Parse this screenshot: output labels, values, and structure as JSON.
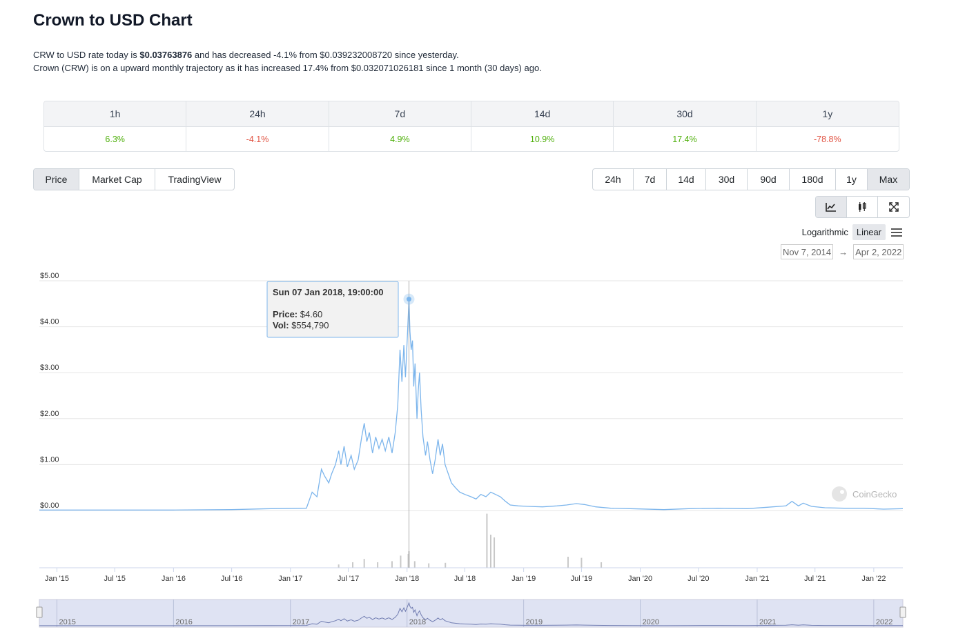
{
  "page": {
    "title": "Crown to USD Chart",
    "summary_line1": {
      "prefix": "CRW to USD rate today is ",
      "price": "$0.03763876",
      "suffix": " and has decreased -4.1% from $0.039232008720 since yesterday."
    },
    "summary_line2": "Crown (CRW) is on a upward monthly trajectory as it has increased 17.4% from $0.032071026181 since 1 month (30 days) ago."
  },
  "price_changes": [
    {
      "period": "1h",
      "value": "6.3%",
      "direction": "up"
    },
    {
      "period": "24h",
      "value": "-4.1%",
      "direction": "down"
    },
    {
      "period": "7d",
      "value": "4.9%",
      "direction": "up"
    },
    {
      "period": "14d",
      "value": "10.9%",
      "direction": "up"
    },
    {
      "period": "30d",
      "value": "17.4%",
      "direction": "up"
    },
    {
      "period": "1y",
      "value": "-78.8%",
      "direction": "down"
    }
  ],
  "chart_type_tabs": [
    {
      "label": "Price",
      "active": true
    },
    {
      "label": "Market Cap",
      "active": false
    },
    {
      "label": "TradingView",
      "active": false
    }
  ],
  "range_tabs": [
    {
      "label": "24h",
      "active": false
    },
    {
      "label": "7d",
      "active": false
    },
    {
      "label": "14d",
      "active": false
    },
    {
      "label": "30d",
      "active": false
    },
    {
      "label": "90d",
      "active": false
    },
    {
      "label": "180d",
      "active": false
    },
    {
      "label": "1y",
      "active": false
    },
    {
      "label": "Max",
      "active": true
    }
  ],
  "view_buttons": [
    {
      "icon": "line-chart-icon",
      "active": true
    },
    {
      "icon": "candlestick-icon",
      "active": false
    },
    {
      "icon": "fullscreen-icon",
      "active": false
    }
  ],
  "scale": {
    "logarithmic": "Logarithmic",
    "linear": "Linear",
    "active": "linear"
  },
  "date_range": {
    "from": "Nov 7, 2014",
    "arrow": "→",
    "to": "Apr 2, 2022"
  },
  "colors": {
    "line": "#7cb5ec",
    "positive": "#4eaf0a",
    "negative": "#e15241",
    "navigator_fill": "#dfe3f3"
  },
  "watermark": "CoinGecko",
  "chart_data": {
    "type": "line",
    "title": "",
    "xlabel": "",
    "ylabel": "",
    "y_ticks": [
      "$0.00",
      "$1.00",
      "$2.00",
      "$3.00",
      "$4.00",
      "$5.00"
    ],
    "ylim": [
      0,
      5
    ],
    "x_ticks": [
      "Jan '15",
      "Jul '15",
      "Jan '16",
      "Jul '16",
      "Jan '17",
      "Jul '17",
      "Jan '18",
      "Jul '18",
      "Jan '19",
      "Jul '19",
      "Jan '20",
      "Jul '20",
      "Jan '21",
      "Jul '21",
      "Jan '22"
    ],
    "x_tick_dates": [
      "2015-01-01",
      "2015-07-01",
      "2016-01-01",
      "2016-07-01",
      "2017-01-01",
      "2017-07-01",
      "2018-01-01",
      "2018-07-01",
      "2019-01-01",
      "2019-07-01",
      "2020-01-01",
      "2020-07-01",
      "2021-01-01",
      "2021-07-01",
      "2022-01-01"
    ],
    "grid": true,
    "series": [
      {
        "name": "Price",
        "points": [
          [
            "2014-11-07",
            0.01
          ],
          [
            "2015-03-01",
            0.01
          ],
          [
            "2015-07-01",
            0.01
          ],
          [
            "2016-01-01",
            0.01
          ],
          [
            "2016-07-01",
            0.02
          ],
          [
            "2016-11-01",
            0.04
          ],
          [
            "2017-02-20",
            0.05
          ],
          [
            "2017-03-10",
            0.4
          ],
          [
            "2017-03-25",
            0.3
          ],
          [
            "2017-04-08",
            0.9
          ],
          [
            "2017-04-18",
            0.75
          ],
          [
            "2017-05-01",
            0.6
          ],
          [
            "2017-05-10",
            0.8
          ],
          [
            "2017-05-22",
            1.0
          ],
          [
            "2017-06-01",
            1.3
          ],
          [
            "2017-06-08",
            1.0
          ],
          [
            "2017-06-18",
            1.4
          ],
          [
            "2017-06-28",
            0.95
          ],
          [
            "2017-07-10",
            1.2
          ],
          [
            "2017-07-20",
            0.9
          ],
          [
            "2017-08-01",
            1.1
          ],
          [
            "2017-08-12",
            1.6
          ],
          [
            "2017-08-20",
            1.9
          ],
          [
            "2017-08-28",
            1.5
          ],
          [
            "2017-09-05",
            1.7
          ],
          [
            "2017-09-15",
            1.25
          ],
          [
            "2017-09-25",
            1.6
          ],
          [
            "2017-10-05",
            1.35
          ],
          [
            "2017-10-15",
            1.55
          ],
          [
            "2017-10-25",
            1.3
          ],
          [
            "2017-11-05",
            1.6
          ],
          [
            "2017-11-15",
            1.25
          ],
          [
            "2017-11-25",
            1.7
          ],
          [
            "2017-12-03",
            2.3
          ],
          [
            "2017-12-10",
            3.5
          ],
          [
            "2017-12-16",
            2.8
          ],
          [
            "2017-12-22",
            3.6
          ],
          [
            "2017-12-27",
            2.9
          ],
          [
            "2018-01-02",
            3.8
          ],
          [
            "2018-01-07",
            4.6
          ],
          [
            "2018-01-10",
            3.9
          ],
          [
            "2018-01-14",
            3.5
          ],
          [
            "2018-01-18",
            3.7
          ],
          [
            "2018-01-22",
            2.7
          ],
          [
            "2018-01-26",
            3.2
          ],
          [
            "2018-02-01",
            2.0
          ],
          [
            "2018-02-05",
            2.6
          ],
          [
            "2018-02-09",
            3.0
          ],
          [
            "2018-02-14",
            2.2
          ],
          [
            "2018-02-20",
            1.6
          ],
          [
            "2018-02-28",
            1.2
          ],
          [
            "2018-03-06",
            1.5
          ],
          [
            "2018-03-14",
            1.1
          ],
          [
            "2018-03-22",
            0.8
          ],
          [
            "2018-03-30",
            1.1
          ],
          [
            "2018-04-08",
            1.55
          ],
          [
            "2018-04-15",
            1.2
          ],
          [
            "2018-04-22",
            1.45
          ],
          [
            "2018-04-30",
            1.0
          ],
          [
            "2018-05-10",
            0.8
          ],
          [
            "2018-05-20",
            0.6
          ],
          [
            "2018-06-01",
            0.5
          ],
          [
            "2018-06-15",
            0.4
          ],
          [
            "2018-07-01",
            0.35
          ],
          [
            "2018-07-20",
            0.3
          ],
          [
            "2018-08-05",
            0.25
          ],
          [
            "2018-08-20",
            0.35
          ],
          [
            "2018-09-05",
            0.3
          ],
          [
            "2018-09-20",
            0.4
          ],
          [
            "2018-10-05",
            0.35
          ],
          [
            "2018-10-20",
            0.3
          ],
          [
            "2018-11-05",
            0.2
          ],
          [
            "2018-11-20",
            0.12
          ],
          [
            "2018-12-15",
            0.1
          ],
          [
            "2019-01-15",
            0.09
          ],
          [
            "2019-03-01",
            0.08
          ],
          [
            "2019-04-15",
            0.1
          ],
          [
            "2019-05-15",
            0.12
          ],
          [
            "2019-06-15",
            0.15
          ],
          [
            "2019-07-10",
            0.13
          ],
          [
            "2019-08-15",
            0.08
          ],
          [
            "2019-10-01",
            0.05
          ],
          [
            "2019-12-01",
            0.04
          ],
          [
            "2020-03-15",
            0.02
          ],
          [
            "2020-06-01",
            0.04
          ],
          [
            "2020-09-01",
            0.05
          ],
          [
            "2020-12-01",
            0.04
          ],
          [
            "2021-02-01",
            0.07
          ],
          [
            "2021-04-01",
            0.1
          ],
          [
            "2021-04-20",
            0.2
          ],
          [
            "2021-05-10",
            0.1
          ],
          [
            "2021-05-25",
            0.16
          ],
          [
            "2021-06-20",
            0.09
          ],
          [
            "2021-08-01",
            0.06
          ],
          [
            "2021-10-01",
            0.05
          ],
          [
            "2021-12-01",
            0.05
          ],
          [
            "2022-02-01",
            0.03
          ],
          [
            "2022-04-02",
            0.04
          ]
        ]
      }
    ],
    "volume": [
      [
        "2017-06-01",
        0.06
      ],
      [
        "2017-07-15",
        0.1
      ],
      [
        "2017-08-20",
        0.16
      ],
      [
        "2017-10-01",
        0.1
      ],
      [
        "2017-11-15",
        0.12
      ],
      [
        "2017-12-12",
        0.22
      ],
      [
        "2018-01-05",
        0.25
      ],
      [
        "2018-01-07",
        0.3
      ],
      [
        "2018-01-25",
        0.12
      ],
      [
        "2018-03-10",
        0.08
      ],
      [
        "2018-05-01",
        0.09
      ],
      [
        "2018-09-08",
        0.98
      ],
      [
        "2018-09-20",
        0.6
      ],
      [
        "2018-10-01",
        0.55
      ],
      [
        "2019-05-20",
        0.2
      ],
      [
        "2019-07-01",
        0.18
      ],
      [
        "2019-09-01",
        0.1
      ]
    ],
    "tooltip": {
      "date": "Sun 07 Jan 2018, 19:00:00",
      "date_iso": "2018-01-07",
      "price_label": "Price:",
      "price_value": "$4.60",
      "vol_label": "Vol:",
      "vol_value": "$554,790"
    },
    "navigator_labels": [
      "2015",
      "2016",
      "2017",
      "2018",
      "2019",
      "2020",
      "2021",
      "2022"
    ],
    "navigator_label_dates": [
      "2015-01-01",
      "2016-01-01",
      "2017-01-01",
      "2018-01-01",
      "2019-01-01",
      "2020-01-01",
      "2021-01-01",
      "2022-01-01"
    ]
  }
}
